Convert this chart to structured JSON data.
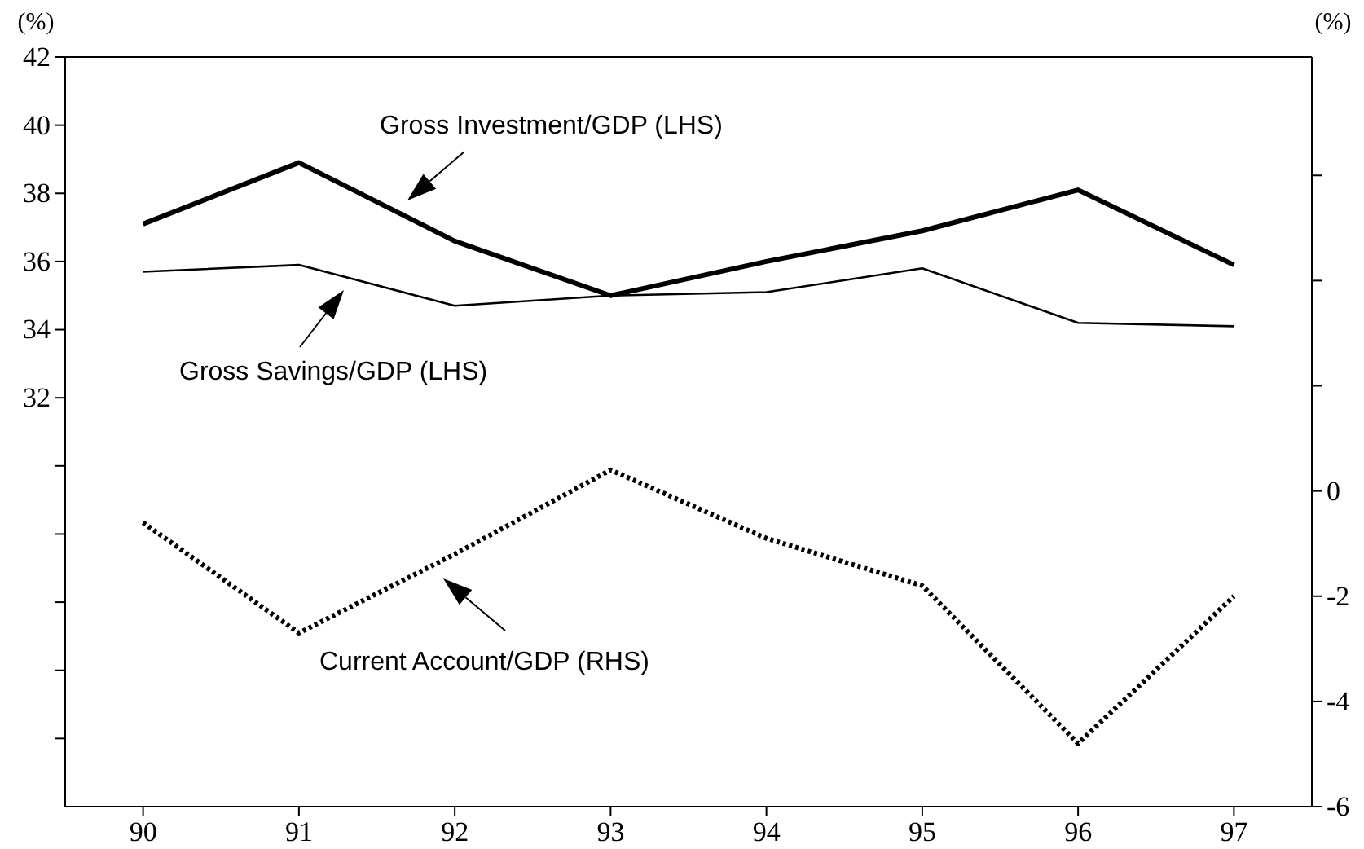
{
  "chart_data": {
    "type": "line",
    "ylabel": "(%)",
    "y2label": "(%)",
    "x": [
      90,
      91,
      92,
      93,
      94,
      95,
      96,
      97
    ],
    "xlim": [
      89.5,
      97.5
    ],
    "xticks": [
      90,
      91,
      92,
      93,
      94,
      95,
      96,
      97
    ],
    "ylim": [
      20,
      42
    ],
    "yticks": [
      {
        "value": 22,
        "label": null
      },
      {
        "value": 24,
        "label": null
      },
      {
        "value": 26,
        "label": null
      },
      {
        "value": 28,
        "label": null
      },
      {
        "value": 30,
        "label": null
      },
      32,
      34,
      36,
      38,
      40,
      42
    ],
    "y2lim": [
      -6,
      8.25
    ],
    "y2ticks": [
      -6,
      -4,
      -2,
      0,
      {
        "value": 2,
        "label": null
      },
      {
        "value": 4,
        "label": null
      },
      {
        "value": 6,
        "label": null
      }
    ],
    "series": [
      {
        "color": "#000000",
        "line_style": "solid",
        "values": [
          37.1,
          38.9,
          36.6,
          35.0,
          36.0,
          36.9,
          38.1,
          35.9
        ]
      },
      {
        "color": "#000000",
        "line_style": "solid",
        "values": [
          35.7,
          35.9,
          34.7,
          35.0,
          35.1,
          35.8,
          34.2,
          34.1
        ]
      },
      {
        "color": "#000000",
        "line_style": "dotted",
        "axis": "y2",
        "values": [
          -0.6,
          -2.7,
          -1.2,
          0.4,
          -0.9,
          -1.8,
          -4.8,
          -2.0
        ]
      }
    ],
    "annotations": [
      "Gross Investment/GDP (LHS)",
      "Gross Savings/GDP (LHS)",
      "Current Account/GDP (RHS)"
    ],
    "grid": false,
    "marker": "none"
  }
}
